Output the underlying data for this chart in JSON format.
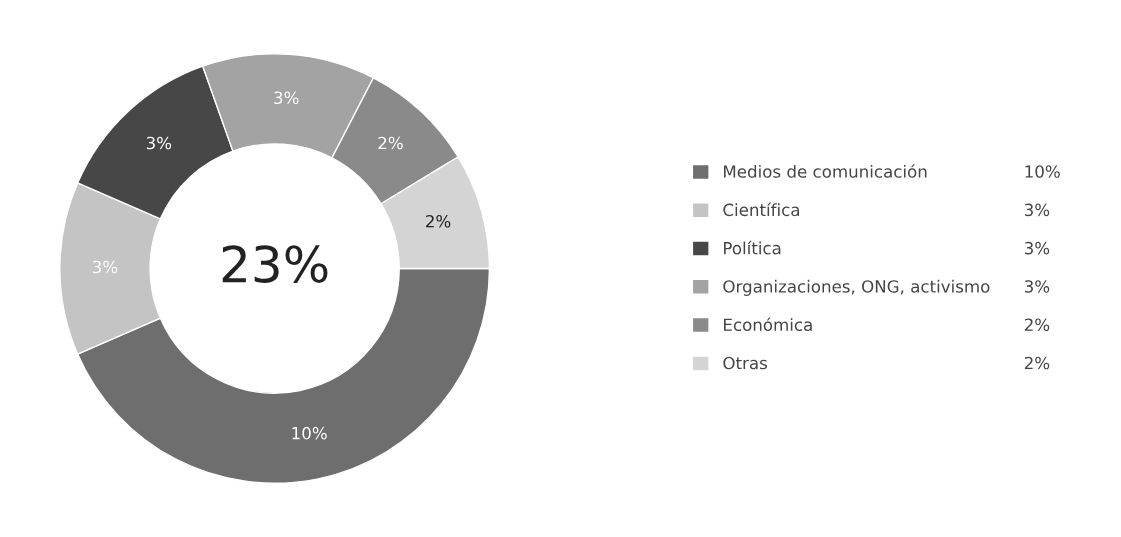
{
  "chart_data": {
    "type": "donut",
    "categories": [
      "Medios de comunicación",
      "Científica",
      "Política",
      "Organizaciones, ONG, activismo",
      "Económica",
      "Otras"
    ],
    "values": [
      10,
      3,
      3,
      3,
      2,
      2
    ],
    "value_labels": [
      "10%",
      "3%",
      "3%",
      "3%",
      "2%",
      "2%"
    ],
    "colors": [
      "#6e6e6e",
      "#c4c4c4",
      "#474747",
      "#a3a3a3",
      "#8a8a8a",
      "#d4d4d4"
    ],
    "annotations": [
      "23%"
    ],
    "legend": "right"
  }
}
